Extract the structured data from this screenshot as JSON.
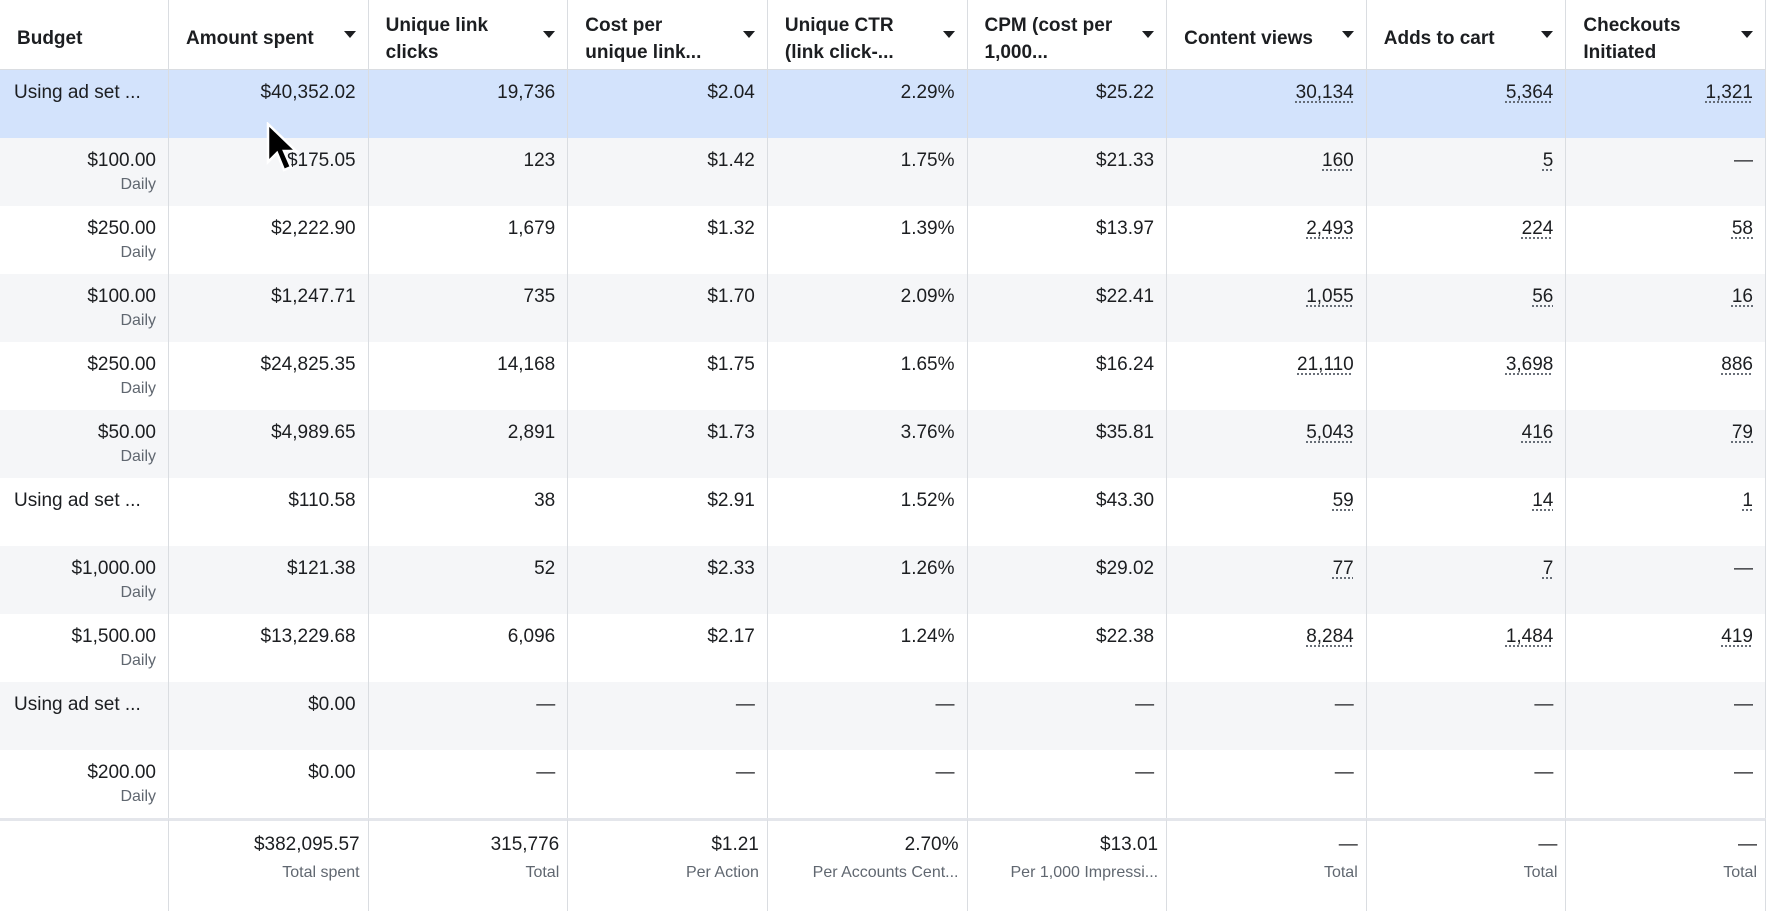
{
  "header": {
    "columns": [
      [
        "Budget"
      ],
      [
        "Amount spent"
      ],
      [
        "Unique link",
        "clicks"
      ],
      [
        "Cost per",
        "unique link..."
      ],
      [
        "Unique CTR",
        "(link click-..."
      ],
      [
        "CPM (cost per",
        "1,000..."
      ],
      [
        "Content views"
      ],
      [
        "Adds to cart"
      ],
      [
        "Checkouts",
        "Initiated"
      ]
    ]
  },
  "table": {
    "rows": [
      {
        "budget": "Using ad set ...",
        "values": [
          "$40,352.02",
          "19,736",
          "$2.04",
          "2.29%",
          "$25.22",
          "30,134",
          "5,364",
          "1,321"
        ]
      },
      {
        "budget": "$100.00",
        "period": "Daily",
        "values": [
          "$175.05",
          "123",
          "$1.42",
          "1.75%",
          "$21.33",
          "160",
          "5",
          "—"
        ]
      },
      {
        "budget": "$250.00",
        "period": "Daily",
        "values": [
          "$2,222.90",
          "1,679",
          "$1.32",
          "1.39%",
          "$13.97",
          "2,493",
          "224",
          "58"
        ]
      },
      {
        "budget": "$100.00",
        "period": "Daily",
        "values": [
          "$1,247.71",
          "735",
          "$1.70",
          "2.09%",
          "$22.41",
          "1,055",
          "56",
          "16"
        ]
      },
      {
        "budget": "$250.00",
        "period": "Daily",
        "values": [
          "$24,825.35",
          "14,168",
          "$1.75",
          "1.65%",
          "$16.24",
          "21,110",
          "3,698",
          "886"
        ]
      },
      {
        "budget": "$50.00",
        "period": "Daily",
        "values": [
          "$4,989.65",
          "2,891",
          "$1.73",
          "3.76%",
          "$35.81",
          "5,043",
          "416",
          "79"
        ]
      },
      {
        "budget": "Using ad set ...",
        "values": [
          "$110.58",
          "38",
          "$2.91",
          "1.52%",
          "$43.30",
          "59",
          "14",
          "1"
        ]
      },
      {
        "budget": "$1,000.00",
        "period": "Daily",
        "values": [
          "$121.38",
          "52",
          "$2.33",
          "1.26%",
          "$29.02",
          "77",
          "7",
          "—"
        ]
      },
      {
        "budget": "$1,500.00",
        "period": "Daily",
        "values": [
          "$13,229.68",
          "6,096",
          "$2.17",
          "1.24%",
          "$22.38",
          "8,284",
          "1,484",
          "419"
        ]
      },
      {
        "budget": "Using ad set ...",
        "values": [
          "$0.00",
          "—",
          "—",
          "—",
          "—",
          "—",
          "—",
          "—"
        ]
      },
      {
        "budget": "$200.00",
        "period": "Daily",
        "values": [
          "$0.00",
          "—",
          "—",
          "—",
          "—",
          "—",
          "—",
          "—"
        ]
      }
    ]
  },
  "footer": {
    "cells": [
      {
        "value": "$382,095.57",
        "label": "Total spent"
      },
      {
        "value": "315,776",
        "label": "Total"
      },
      {
        "value": "$1.21",
        "label": "Per Action"
      },
      {
        "value": "2.70%",
        "label": "Per Accounts Cent..."
      },
      {
        "value": "$13.01",
        "label": "Per 1,000 Impressi..."
      },
      {
        "value": "—",
        "label": "Total"
      },
      {
        "value": "—",
        "label": "Total"
      },
      {
        "value": "—",
        "label": "Total"
      }
    ]
  }
}
